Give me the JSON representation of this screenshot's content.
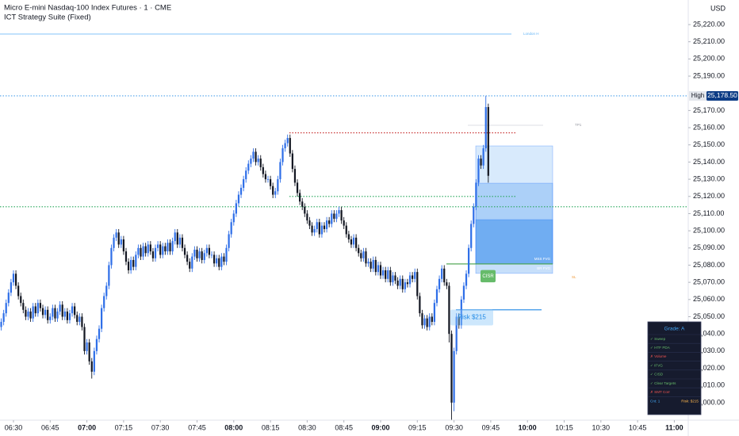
{
  "chart_data": {
    "type": "candlestick",
    "title": "Micro E-mini Nasdaq-100 Index Futures · 1 · CME",
    "subtitle": "ICT Strategy Suite (Fixed)",
    "currency": "USD",
    "up_color": "#2f6fe8",
    "down_color": "#131722",
    "open": [
      25044,
      25047,
      25052,
      25058,
      25064,
      25070,
      25075,
      25068,
      25062,
      25058,
      25054,
      25050,
      25053,
      25049,
      25056,
      25052,
      25058,
      25055,
      25051,
      25054,
      25048,
      25050,
      25055,
      25049,
      25053,
      25057,
      25050,
      25053,
      25048,
      25052,
      25056,
      25051,
      25047,
      25050,
      25044,
      25030,
      25035,
      25024,
      25018,
      25030,
      25037,
      25043,
      25055,
      25062,
      25068,
      25080,
      25090,
      25096,
      25099,
      25092,
      25095,
      25088,
      25082,
      25077,
      25083,
      25079,
      25086,
      25090,
      25085,
      25091,
      25087,
      25092,
      25088,
      25084,
      25090,
      25092,
      25086,
      25091,
      25088,
      25093,
      25088,
      25094,
      25099,
      25092,
      25096,
      25090,
      25086,
      25082,
      25078,
      25085,
      25089,
      25084,
      25088,
      25083,
      25087,
      25090,
      25086,
      25086,
      25081,
      25084,
      25079,
      25085,
      25082,
      25090,
      25098,
      25105,
      25110,
      25116,
      25121,
      25125,
      25130,
      25135,
      25139,
      25142,
      25146,
      25140,
      25142,
      25137,
      25133,
      25130,
      25130,
      25126,
      25121,
      25123,
      25130,
      25140,
      25148,
      25151,
      25154,
      25145,
      25136,
      25128,
      25122,
      25117,
      25114,
      25110,
      25106,
      25103,
      25099,
      25101,
      25105,
      25098,
      25103,
      25101,
      25106,
      25104,
      25110,
      25107,
      25110,
      25112,
      25106,
      25103,
      25098,
      25095,
      25092,
      25096,
      25090,
      25087,
      25084,
      25088,
      25081,
      25082,
      25078,
      25083,
      25076,
      25080,
      25074,
      25077,
      25072,
      25077,
      25070,
      25074,
      25071,
      25068,
      25072,
      25066,
      25070,
      25069,
      25074,
      25072,
      25076,
      25062,
      25052,
      25045,
      25049,
      25044,
      25050,
      25047,
      25058,
      25066,
      25072,
      25078,
      25070,
      25068,
      25040,
      25000,
      25030,
      25050,
      25045,
      25060,
      25068,
      25075,
      25090,
      25104,
      25114,
      25128,
      25142,
      25138,
      25148,
      25172
    ],
    "high": [
      25049,
      25054,
      25060,
      25066,
      25072,
      25077,
      25077,
      25070,
      25064,
      25060,
      25056,
      25055,
      25055,
      25058,
      25058,
      25060,
      25060,
      25057,
      25056,
      25056,
      25052,
      25057,
      25057,
      25055,
      25059,
      25059,
      25055,
      25055,
      25054,
      25058,
      25058,
      25053,
      25052,
      25052,
      25046,
      25037,
      25037,
      25026,
      25032,
      25039,
      25045,
      25057,
      25064,
      25070,
      25082,
      25092,
      25098,
      25101,
      25101,
      25097,
      25097,
      25090,
      25084,
      25085,
      25085,
      25088,
      25092,
      25092,
      25093,
      25093,
      25094,
      25094,
      25090,
      25092,
      25094,
      25094,
      25093,
      25093,
      25095,
      25095,
      25096,
      25101,
      25101,
      25098,
      25098,
      25092,
      25088,
      25084,
      25087,
      25091,
      25091,
      25090,
      25090,
      25089,
      25092,
      25092,
      25088,
      25088,
      25086,
      25086,
      25087,
      25087,
      25092,
      25100,
      25107,
      25112,
      25118,
      25123,
      25127,
      25132,
      25137,
      25141,
      25144,
      25148,
      25148,
      25144,
      25144,
      25139,
      25135,
      25132,
      25132,
      25128,
      25125,
      25132,
      25142,
      25150,
      25153,
      25156,
      25156,
      25147,
      25138,
      25130,
      25124,
      25119,
      25116,
      25112,
      25108,
      25105,
      25103,
      25107,
      25107,
      25105,
      25105,
      25108,
      25108,
      25112,
      25112,
      25112,
      25114,
      25114,
      25108,
      25105,
      25100,
      25097,
      25098,
      25098,
      25092,
      25089,
      25090,
      25090,
      25084,
      25084,
      25085,
      25085,
      25082,
      25082,
      25079,
      25079,
      25079,
      25079,
      25076,
      25076,
      25073,
      25074,
      25074,
      25072,
      25072,
      25076,
      25076,
      25078,
      25078,
      25064,
      25054,
      25051,
      25051,
      25052,
      25052,
      25060,
      25068,
      25074,
      25080,
      25080,
      25072,
      25070,
      25042,
      25032,
      25052,
      25052,
      25062,
      25070,
      25077,
      25092,
      25106,
      25116,
      25130,
      25144,
      25144,
      25150,
      25178.5,
      25174
    ],
    "low": [
      25042,
      25045,
      25050,
      25056,
      25062,
      25068,
      25066,
      25060,
      25056,
      25052,
      25048,
      25048,
      25047,
      25047,
      25050,
      25050,
      25053,
      25049,
      25049,
      25046,
      25046,
      25048,
      25047,
      25047,
      25051,
      25048,
      25048,
      25046,
      25046,
      25050,
      25049,
      25045,
      25045,
      25042,
      25028,
      25028,
      25022,
      25014,
      25016,
      25028,
      25035,
      25041,
      25053,
      25060,
      25066,
      25078,
      25088,
      25094,
      25090,
      25090,
      25086,
      25080,
      25075,
      25075,
      25077,
      25077,
      25084,
      25083,
      25083,
      25085,
      25085,
      25086,
      25082,
      25082,
      25088,
      25084,
      25084,
      25086,
      25086,
      25086,
      25086,
      25092,
      25090,
      25090,
      25088,
      25084,
      25080,
      25076,
      25076,
      25083,
      25082,
      25082,
      25081,
      25081,
      25085,
      25084,
      25084,
      25079,
      25079,
      25077,
      25077,
      25080,
      25080,
      25088,
      25096,
      25103,
      25108,
      25114,
      25119,
      25123,
      25128,
      25133,
      25137,
      25140,
      25138,
      25138,
      25135,
      25131,
      25128,
      25128,
      25124,
      25119,
      25119,
      25121,
      25128,
      25138,
      25146,
      25149,
      25143,
      25134,
      25126,
      25120,
      25115,
      25112,
      25108,
      25104,
      25101,
      25097,
      25097,
      25099,
      25096,
      25096,
      25099,
      25099,
      25102,
      25102,
      25105,
      25105,
      25108,
      25104,
      25101,
      25096,
      25093,
      25090,
      25090,
      25088,
      25085,
      25082,
      25082,
      25079,
      25079,
      25076,
      25076,
      25074,
      25074,
      25072,
      25072,
      25070,
      25070,
      25068,
      25068,
      25069,
      25066,
      25066,
      25064,
      25064,
      25067,
      25067,
      25070,
      25070,
      25060,
      25050,
      25043,
      25043,
      25042,
      25042,
      25045,
      25045,
      25056,
      25064,
      25070,
      25068,
      25066,
      25035,
      24990,
      24995,
      25028,
      25043,
      25043,
      25058,
      25066,
      25073,
      25088,
      25102,
      25112,
      25126,
      25136,
      25136,
      25146,
      25128
    ],
    "close": [
      25047,
      25052,
      25058,
      25064,
      25070,
      25075,
      25068,
      25062,
      25058,
      25054,
      25050,
      25053,
      25049,
      25056,
      25052,
      25058,
      25055,
      25051,
      25054,
      25048,
      25050,
      25055,
      25049,
      25053,
      25057,
      25050,
      25053,
      25048,
      25052,
      25056,
      25051,
      25047,
      25050,
      25044,
      25030,
      25035,
      25024,
      25018,
      25030,
      25037,
      25043,
      25055,
      25062,
      25068,
      25080,
      25090,
      25096,
      25099,
      25092,
      25095,
      25088,
      25082,
      25077,
      25083,
      25079,
      25086,
      25090,
      25085,
      25091,
      25087,
      25092,
      25088,
      25084,
      25090,
      25092,
      25086,
      25091,
      25088,
      25093,
      25088,
      25094,
      25099,
      25092,
      25096,
      25090,
      25086,
      25082,
      25078,
      25085,
      25089,
      25084,
      25088,
      25083,
      25087,
      25090,
      25086,
      25086,
      25081,
      25084,
      25079,
      25085,
      25082,
      25090,
      25098,
      25105,
      25110,
      25116,
      25121,
      25125,
      25130,
      25135,
      25139,
      25142,
      25146,
      25140,
      25142,
      25137,
      25133,
      25130,
      25130,
      25126,
      25121,
      25123,
      25130,
      25140,
      25148,
      25151,
      25154,
      25145,
      25136,
      25128,
      25122,
      25117,
      25114,
      25110,
      25106,
      25103,
      25099,
      25101,
      25105,
      25098,
      25103,
      25101,
      25106,
      25104,
      25110,
      25107,
      25110,
      25112,
      25106,
      25103,
      25098,
      25095,
      25092,
      25096,
      25090,
      25087,
      25084,
      25088,
      25081,
      25082,
      25078,
      25083,
      25076,
      25080,
      25074,
      25077,
      25072,
      25077,
      25070,
      25074,
      25071,
      25068,
      25072,
      25066,
      25070,
      25069,
      25074,
      25072,
      25076,
      25062,
      25052,
      25045,
      25049,
      25044,
      25050,
      25047,
      25058,
      25066,
      25072,
      25078,
      25070,
      25068,
      25040,
      25000,
      25030,
      25050,
      25045,
      25060,
      25068,
      25075,
      25090,
      25104,
      25114,
      25128,
      25142,
      25138,
      25148,
      25172,
      25132
    ],
    "xlim": [
      -0.5,
      280.7
    ],
    "xticks": [
      {
        "value": 5,
        "label": "06:30"
      },
      {
        "value": 20,
        "label": "06:45"
      },
      {
        "value": 35,
        "label": "07:00"
      },
      {
        "value": 50,
        "label": "07:15"
      },
      {
        "value": 65,
        "label": "07:30"
      },
      {
        "value": 80,
        "label": "07:45"
      },
      {
        "value": 95,
        "label": "08:00"
      },
      {
        "value": 110,
        "label": "08:15"
      },
      {
        "value": 125,
        "label": "08:30"
      },
      {
        "value": 140,
        "label": "08:45"
      },
      {
        "value": 155,
        "label": "09:00"
      },
      {
        "value": 170,
        "label": "09:15"
      },
      {
        "value": 185,
        "label": "09:30"
      },
      {
        "value": 200,
        "label": "09:45"
      },
      {
        "value": 215,
        "label": "10:00"
      },
      {
        "value": 230,
        "label": "10:15"
      },
      {
        "value": 245,
        "label": "10:30"
      },
      {
        "value": 260,
        "label": "10:45"
      },
      {
        "value": 275,
        "label": "11:00"
      }
    ],
    "ylim": [
      24989.8,
      25234.3
    ],
    "yticks": [
      {
        "value": 25000,
        "label": "25,000.00"
      },
      {
        "value": 25010,
        "label": "25,010.00"
      },
      {
        "value": 25020,
        "label": "25,020.00"
      },
      {
        "value": 25030,
        "label": "25,030.00"
      },
      {
        "value": 25040,
        "label": "25,040.00"
      },
      {
        "value": 25050,
        "label": "25,050.00"
      },
      {
        "value": 25060,
        "label": "25,060.00"
      },
      {
        "value": 25070,
        "label": "25,070.00"
      },
      {
        "value": 25080,
        "label": "25,080.00"
      },
      {
        "value": 25090,
        "label": "25,090.00"
      },
      {
        "value": 25100,
        "label": "25,100.00"
      },
      {
        "value": 25110,
        "label": "25,110.00"
      },
      {
        "value": 25120,
        "label": "25,120.00"
      },
      {
        "value": 25130,
        "label": "25,130.00"
      },
      {
        "value": 25140,
        "label": "25,140.00"
      },
      {
        "value": 25150,
        "label": "25,150.00"
      },
      {
        "value": 25160,
        "label": "25,160.00"
      },
      {
        "value": 25170,
        "label": "25,170.00"
      },
      {
        "value": 25190,
        "label": "25,190.00"
      },
      {
        "value": 25200,
        "label": "25,200.00"
      },
      {
        "value": 25210,
        "label": "25,210.00"
      },
      {
        "value": 25220,
        "label": "25,220.00"
      }
    ],
    "high_marker": {
      "label": "High",
      "value": 25178.5,
      "value_label": "25,178.50",
      "color": "#1e88e5"
    },
    "levels": [
      {
        "name": "London H",
        "value": 25214.5,
        "color": "#90caf9",
        "style": "solid"
      },
      {
        "value": 25157,
        "color": "#c62828",
        "style": "dotted"
      },
      {
        "name": "TP1",
        "value": 25161.4,
        "color": "#d1d4dc",
        "style": "solid"
      },
      {
        "value": 25120,
        "color": "#26a65b",
        "style": "dotted"
      },
      {
        "value": 25114,
        "color": "#26a65b",
        "style": "dotted"
      },
      {
        "value": 25080.7,
        "color": "#43a047",
        "style": "solid"
      },
      {
        "value": 25054,
        "color": "#1e88e5",
        "style": "solid"
      }
    ],
    "zones": [
      {
        "top": 25149.4,
        "bottom": 25080.7,
        "color": "rgba(100,170,245,0.25)"
      },
      {
        "label": "BR FVG",
        "top": 25127.7,
        "bottom": 25075.2,
        "color": "rgba(70,150,240,0.3)"
      },
      {
        "label": "MSS FVG",
        "top": 25106.5,
        "bottom": 25080.7,
        "color": "rgba(40,130,235,0.45)"
      }
    ],
    "annotations": [
      {
        "text": "CISR",
        "value": 25073,
        "color": "#66bb6a"
      },
      {
        "text": "Risk $215",
        "value": 25050,
        "color": "rgba(144,202,249,0.45)"
      },
      {
        "text": "SL",
        "value": 25073,
        "color": "#ef9a3a"
      }
    ]
  },
  "panel": {
    "title": "Grade: A",
    "items": [
      {
        "text": "✓ Sweep",
        "ok": true
      },
      {
        "text": "✓ HTF PDA",
        "ok": true
      },
      {
        "text": "✗ Volume",
        "ok": false
      },
      {
        "text": "✓ IFVG",
        "ok": true
      },
      {
        "text": "✓ CISD",
        "ok": true
      },
      {
        "text": "✓ Clear Targets",
        "ok": true
      },
      {
        "text": "✗ SMT Corr",
        "ok": false
      }
    ],
    "count": "Cnt: 1",
    "risk": "Risk: $215"
  }
}
